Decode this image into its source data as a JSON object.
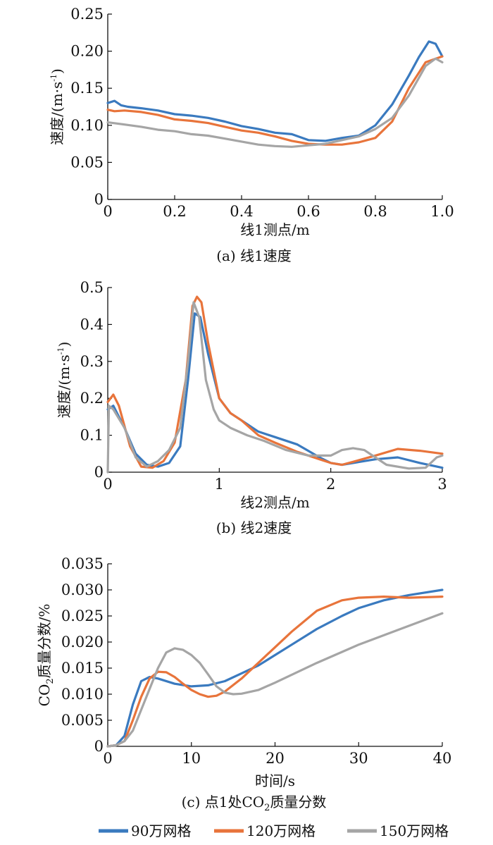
{
  "chart_data": [
    {
      "type": "line",
      "caption": "(a) 线1速度",
      "xlabel": "线1测点/m",
      "ylabel": "速度/(m·s",
      "ylabel_sup": "-1",
      "ylabel_close": ")",
      "xlim": [
        0,
        1.0
      ],
      "ylim": [
        0,
        0.25
      ],
      "xticks": [
        "0",
        "0.2",
        "0.4",
        "0.6",
        "0.8",
        "1.0"
      ],
      "yticks": [
        "0",
        "0.05",
        "0.10",
        "0.15",
        "0.20",
        "0.25"
      ],
      "grid": false,
      "series": [
        {
          "name": "90万网格",
          "x": [
            0,
            0.02,
            0.04,
            0.06,
            0.1,
            0.15,
            0.2,
            0.25,
            0.3,
            0.35,
            0.4,
            0.45,
            0.5,
            0.55,
            0.6,
            0.65,
            0.7,
            0.75,
            0.8,
            0.85,
            0.9,
            0.93,
            0.96,
            0.98,
            1.0
          ],
          "y": [
            0.13,
            0.133,
            0.127,
            0.125,
            0.123,
            0.12,
            0.115,
            0.113,
            0.11,
            0.105,
            0.099,
            0.095,
            0.09,
            0.088,
            0.08,
            0.079,
            0.083,
            0.086,
            0.1,
            0.128,
            0.167,
            0.192,
            0.213,
            0.21,
            0.193
          ]
        },
        {
          "name": "120万网格",
          "x": [
            0,
            0.02,
            0.05,
            0.1,
            0.15,
            0.2,
            0.25,
            0.3,
            0.35,
            0.4,
            0.45,
            0.5,
            0.55,
            0.6,
            0.65,
            0.7,
            0.75,
            0.8,
            0.85,
            0.9,
            0.95,
            1.0
          ],
          "y": [
            0.121,
            0.119,
            0.12,
            0.118,
            0.114,
            0.108,
            0.106,
            0.103,
            0.098,
            0.093,
            0.09,
            0.085,
            0.079,
            0.075,
            0.074,
            0.074,
            0.077,
            0.083,
            0.105,
            0.15,
            0.185,
            0.193
          ]
        },
        {
          "name": "150万网格",
          "x": [
            0,
            0.05,
            0.1,
            0.15,
            0.2,
            0.25,
            0.3,
            0.35,
            0.4,
            0.45,
            0.5,
            0.55,
            0.6,
            0.65,
            0.7,
            0.75,
            0.8,
            0.85,
            0.9,
            0.95,
            0.98,
            1.0
          ],
          "y": [
            0.104,
            0.101,
            0.098,
            0.094,
            0.092,
            0.088,
            0.086,
            0.082,
            0.078,
            0.074,
            0.072,
            0.071,
            0.073,
            0.075,
            0.08,
            0.085,
            0.095,
            0.11,
            0.14,
            0.18,
            0.19,
            0.185
          ]
        }
      ]
    },
    {
      "type": "line",
      "caption": "(b) 线2速度",
      "xlabel": "线2测点/m",
      "ylabel": "速度/(m·s",
      "ylabel_sup": "-1",
      "ylabel_close": ")",
      "xlim": [
        0,
        3
      ],
      "ylim": [
        0,
        0.5
      ],
      "xticks": [
        "0",
        "1",
        "2",
        "3"
      ],
      "yticks": [
        "0",
        "0.1",
        "0.2",
        "0.3",
        "0.4",
        "0.5"
      ],
      "grid": false,
      "series": [
        {
          "name": "90万网格",
          "x": [
            0,
            0.05,
            0.15,
            0.25,
            0.35,
            0.45,
            0.55,
            0.65,
            0.72,
            0.78,
            0.83,
            0.9,
            1.0,
            1.1,
            1.2,
            1.35,
            1.5,
            1.7,
            1.9,
            2.0,
            2.1,
            2.2,
            2.4,
            2.6,
            2.8,
            3.0
          ],
          "y": [
            0.17,
            0.18,
            0.12,
            0.05,
            0.02,
            0.015,
            0.025,
            0.07,
            0.25,
            0.43,
            0.42,
            0.32,
            0.2,
            0.16,
            0.14,
            0.11,
            0.095,
            0.075,
            0.04,
            0.025,
            0.02,
            0.025,
            0.035,
            0.04,
            0.025,
            0.012
          ]
        },
        {
          "name": "120万网格",
          "x": [
            0,
            0.05,
            0.1,
            0.2,
            0.3,
            0.4,
            0.5,
            0.6,
            0.7,
            0.76,
            0.8,
            0.84,
            0.9,
            1.0,
            1.1,
            1.2,
            1.35,
            1.5,
            1.7,
            1.9,
            2.0,
            2.1,
            2.2,
            2.4,
            2.6,
            2.8,
            3.0
          ],
          "y": [
            0.19,
            0.21,
            0.18,
            0.07,
            0.015,
            0.012,
            0.03,
            0.08,
            0.25,
            0.45,
            0.475,
            0.46,
            0.35,
            0.2,
            0.16,
            0.14,
            0.1,
            0.08,
            0.055,
            0.035,
            0.025,
            0.02,
            0.028,
            0.045,
            0.063,
            0.058,
            0.05
          ]
        },
        {
          "name": "150万网格",
          "x": [
            0,
            0.01,
            0.05,
            0.15,
            0.25,
            0.35,
            0.45,
            0.55,
            0.65,
            0.72,
            0.77,
            0.82,
            0.88,
            0.95,
            1.0,
            1.1,
            1.25,
            1.4,
            1.6,
            1.8,
            2.0,
            2.1,
            2.2,
            2.3,
            2.5,
            2.7,
            2.85,
            2.95,
            3.0
          ],
          "y": [
            0,
            0.18,
            0.17,
            0.12,
            0.04,
            0.015,
            0.03,
            0.06,
            0.12,
            0.3,
            0.46,
            0.42,
            0.25,
            0.17,
            0.14,
            0.12,
            0.1,
            0.085,
            0.06,
            0.045,
            0.045,
            0.06,
            0.065,
            0.06,
            0.02,
            0.01,
            0.012,
            0.04,
            0.045
          ]
        }
      ]
    },
    {
      "type": "line",
      "caption": "(c) 点1处CO",
      "caption_sub": "2",
      "caption_end": "质量分数",
      "xlabel": "时间/s",
      "ylabel": "CO",
      "ylabel_sub": "2",
      "ylabel_end": "质量分数/%",
      "xlim": [
        0,
        40
      ],
      "ylim": [
        0,
        0.035
      ],
      "xticks": [
        "0",
        "10",
        "20",
        "30",
        "40"
      ],
      "yticks": [
        "0",
        "0.005",
        "0.010",
        "0.015",
        "0.020",
        "0.025",
        "0.030",
        "0.035"
      ],
      "grid": false,
      "series": [
        {
          "name": "90万网格",
          "x": [
            0,
            1,
            2,
            3,
            4,
            5,
            6,
            8,
            10,
            12,
            14,
            16,
            18,
            20,
            22,
            25,
            28,
            30,
            33,
            36,
            40
          ],
          "y": [
            0,
            0.0002,
            0.002,
            0.008,
            0.0125,
            0.0133,
            0.013,
            0.012,
            0.0115,
            0.0117,
            0.0125,
            0.014,
            0.0155,
            0.0175,
            0.0195,
            0.0225,
            0.025,
            0.0265,
            0.028,
            0.029,
            0.03
          ]
        },
        {
          "name": "120万网格",
          "x": [
            0,
            1,
            2,
            3,
            4,
            5,
            6,
            7,
            8,
            9,
            10,
            11,
            12,
            13,
            14,
            16,
            18,
            20,
            22,
            25,
            28,
            30,
            33,
            36,
            40
          ],
          "y": [
            0,
            0.0002,
            0.001,
            0.005,
            0.0095,
            0.013,
            0.0143,
            0.0142,
            0.0133,
            0.012,
            0.0108,
            0.01,
            0.0095,
            0.0097,
            0.0105,
            0.013,
            0.016,
            0.019,
            0.022,
            0.026,
            0.028,
            0.0285,
            0.0287,
            0.0285,
            0.0287
          ]
        },
        {
          "name": "150万网格",
          "x": [
            0,
            1,
            2,
            3,
            4,
            5,
            6,
            7,
            8,
            9,
            10,
            11,
            12,
            13,
            14,
            15,
            16,
            18,
            20,
            25,
            30,
            35,
            40
          ],
          "y": [
            0,
            0.0002,
            0.001,
            0.003,
            0.007,
            0.011,
            0.015,
            0.018,
            0.0188,
            0.0185,
            0.0175,
            0.016,
            0.0138,
            0.0115,
            0.0103,
            0.01,
            0.0101,
            0.0108,
            0.0122,
            0.016,
            0.0195,
            0.0225,
            0.0255
          ]
        }
      ]
    }
  ],
  "legend": {
    "placement": "bottom",
    "items": [
      {
        "label": "90万网格",
        "color": "#3a7abf"
      },
      {
        "label": "120万网格",
        "color": "#e8743b"
      },
      {
        "label": "150万网格",
        "color": "#a5a5a5"
      }
    ]
  }
}
